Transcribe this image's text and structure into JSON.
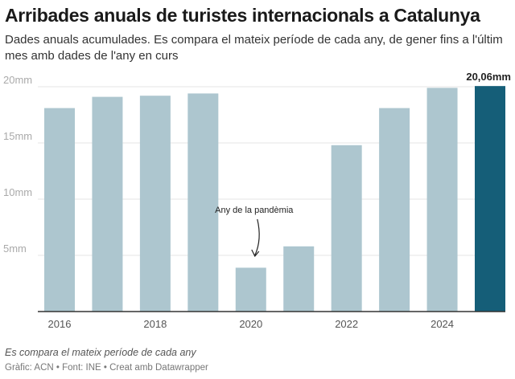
{
  "header": {
    "title": "Arribades anuals de turistes internacionals a Catalunya",
    "subtitle": "Dades anuals acumulades. Es compara el mateix període de cada any, de gener fins a l'últim mes amb dades de l'any en curs"
  },
  "chart_data": {
    "type": "bar",
    "categories": [
      "2016",
      "2017",
      "2018",
      "2019",
      "2020",
      "2021",
      "2022",
      "2023",
      "2024",
      "2025"
    ],
    "values": [
      18.1,
      19.1,
      19.2,
      19.4,
      3.9,
      5.8,
      14.8,
      18.1,
      19.9,
      20.06
    ],
    "ylim": [
      0,
      20
    ],
    "yticks": [
      {
        "v": 5,
        "label": "5mm"
      },
      {
        "v": 10,
        "label": "10mm"
      },
      {
        "v": 15,
        "label": "15mm"
      },
      {
        "v": 20,
        "label": "20mm"
      }
    ],
    "xtick_labels": [
      "2016",
      "2018",
      "2020",
      "2022",
      "2024"
    ],
    "grid": true,
    "colors": {
      "default": "#adc6cf",
      "highlight": "#155e78"
    },
    "highlight_index": 9,
    "data_label": {
      "index": 9,
      "text": "20,06mm"
    },
    "annotation": {
      "text": "Any de la pandèmia",
      "target": "2020"
    }
  },
  "footer": {
    "notes": "Es compara el mateix període de cada any",
    "byline": "Gràfic: ACN • Font: INE • Creat amb Datawrapper"
  }
}
